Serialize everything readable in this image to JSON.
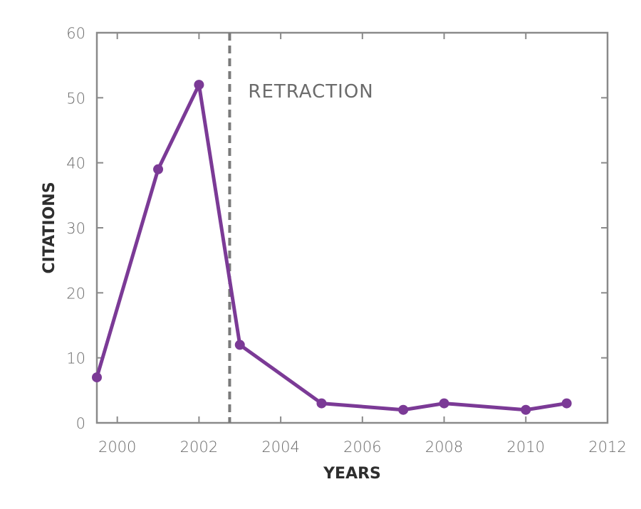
{
  "chart_data": {
    "type": "line",
    "title": "",
    "xlabel": "YEARS",
    "ylabel": "CITATIONS",
    "xlim": [
      1999.5,
      2012
    ],
    "ylim": [
      0,
      60
    ],
    "x_ticks": [
      2000,
      2002,
      2004,
      2006,
      2008,
      2010,
      2012
    ],
    "y_ticks": [
      0,
      10,
      20,
      30,
      40,
      50,
      60
    ],
    "grid": false,
    "legend": "none",
    "series": [
      {
        "color": "#7b3a96",
        "points": [
          {
            "x": 1999.5,
            "y": 7
          },
          {
            "x": 2001,
            "y": 39
          },
          {
            "x": 2002,
            "y": 52
          },
          {
            "x": 2003,
            "y": 12
          },
          {
            "x": 2005,
            "y": 3
          },
          {
            "x": 2007,
            "y": 2
          },
          {
            "x": 2008,
            "y": 3
          },
          {
            "x": 2010,
            "y": 2
          },
          {
            "x": 2011,
            "y": 3
          }
        ]
      }
    ],
    "annotations": [
      {
        "type": "vline",
        "x": 2002.75,
        "style": "dashed",
        "color": "#7a7a7a",
        "label": "RETRACTION"
      }
    ]
  }
}
